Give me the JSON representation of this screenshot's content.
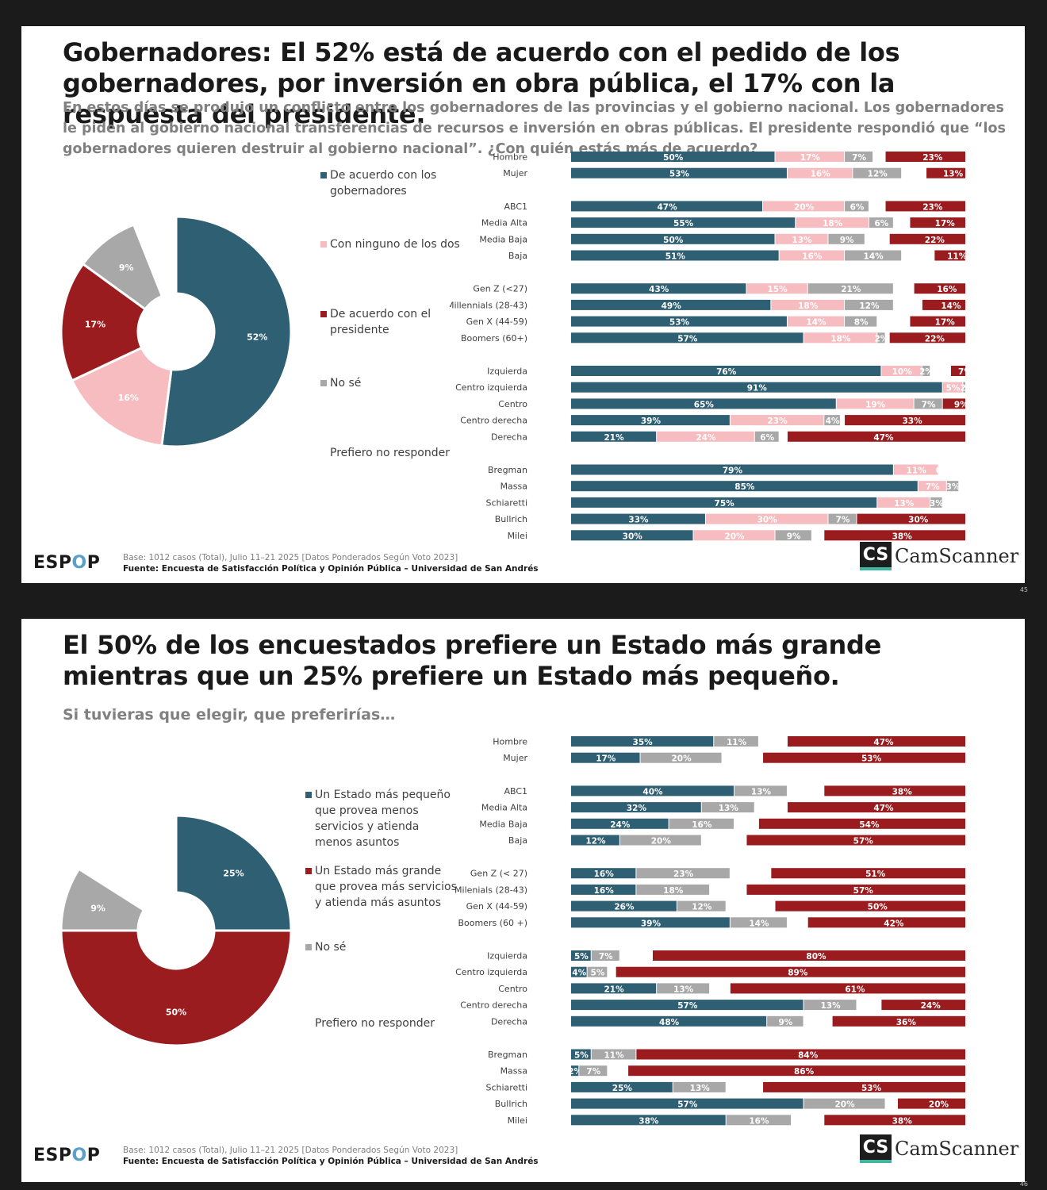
{
  "colors": {
    "acuerdo_gob": "#2e5f73",
    "ninguno": "#f6bcc0",
    "acuerdo_pres": "#9a1c1f",
    "no_se": "#a8a8a8",
    "pequeno": "#2e5f73",
    "grande": "#9a1c1f"
  },
  "slides": [
    {
      "title": "Gobernadores: El 52% está de acuerdo con el pedido de los gobernadores, por inversión en obra pública, el 17% con la respuesta del presidente.",
      "subtitle": "En estos días se produjo un conflicto entre los gobernadores de las provincias y el gobierno nacional. Los gobernadores le piden al gobierno nacional transferencias de recursos e inversión en obras públicas. El presidente respondió que “los gobernadores quieren destruir al gobierno nacional”. ¿Con quién estás más de acuerdo?",
      "legend": [
        "De acuerdo con los gobernadores",
        "Con ninguno de los dos",
        "De acuerdo con el presidente",
        "No sé",
        "Prefiero no responder"
      ],
      "footer_base": "Base: 1012 casos (Total), Julio 11–21 2025 [Datos Ponderados Según Voto 2023]",
      "footer_source": "Fuente: Encuesta de Satisfacción Política y Opinión Pública – Universidad de San Andrés",
      "logo_a": "ESP",
      "logo_o": "O",
      "logo_b": "P",
      "page": "45"
    },
    {
      "title": "El 50% de los encuestados prefiere un Estado más grande mientras que un 25% prefiere un Estado más pequeño.",
      "subtitle": "Si tuvieras que elegir, que preferirías…",
      "legend": [
        "Un Estado más pequeño que provea menos servicios y atienda menos asuntos",
        "Un Estado más grande que provea más servicios y atienda más asuntos",
        "No sé",
        "Prefiero no responder"
      ],
      "footer_base": "Base: 1012 casos (Total), Julio 11–21 2025 [Datos Ponderados Según Voto 2023]",
      "footer_source": "Fuente: Encuesta de Satisfacción Política y Opinión Pública – Universidad de San Andrés",
      "logo_a": "ESP",
      "logo_o": "O",
      "logo_b": "P",
      "page": "46"
    }
  ],
  "watermark": {
    "cs": "CS",
    "text": "CamScanner"
  },
  "chart_data": [
    {
      "type": "pie",
      "slices": [
        {
          "label": "De acuerdo con los gobernadores",
          "value": 52,
          "display": "52%",
          "color": "#2e5f73"
        },
        {
          "label": "Con ninguno de los dos",
          "value": 16,
          "display": "16%",
          "color": "#f6bcc0"
        },
        {
          "label": "De acuerdo con el presidente",
          "value": 17,
          "display": "17%",
          "color": "#9a1c1f"
        },
        {
          "label": "No sé",
          "value": 9,
          "display": "9%",
          "color": "#a8a8a8"
        },
        {
          "label": "Prefiero no responder",
          "value": 6,
          "display": "",
          "color": "#ffffff"
        }
      ]
    },
    {
      "type": "bar",
      "orientation": "horizontal-stacked",
      "series": [
        "De acuerdo con los gobernadores",
        "Con ninguno de los dos",
        "No sé",
        "Prefiero no responder",
        "De acuerdo con el presidente"
      ],
      "groups": [
        [
          {
            "label": "Hombre",
            "values": [
              50,
              17,
              7,
              3,
              23
            ],
            "labels": [
              "50%",
              "17%",
              "7%",
              "",
              "23%"
            ]
          },
          {
            "label": "Mujer",
            "values": [
              53,
              16,
              12,
              6,
              13
            ],
            "labels": [
              "53%",
              "16%",
              "12%",
              "",
              "13%"
            ]
          }
        ],
        [
          {
            "label": "ABC1",
            "values": [
              47,
              20,
              6,
              4,
              23
            ],
            "labels": [
              "47%",
              "20%",
              "6%",
              "",
              "23%"
            ]
          },
          {
            "label": "Media Alta",
            "values": [
              55,
              18,
              6,
              4,
              17
            ],
            "labels": [
              "55%",
              "18%",
              "6%",
              "",
              "17%"
            ]
          },
          {
            "label": "Media Baja",
            "values": [
              50,
              13,
              9,
              6,
              22
            ],
            "labels": [
              "50%",
              "13%",
              "9%",
              "",
              "22%"
            ]
          },
          {
            "label": "Baja",
            "values": [
              51,
              16,
              14,
              8,
              11
            ],
            "labels": [
              "51%",
              "16%",
              "14%",
              "",
              "11%"
            ]
          }
        ],
        [
          {
            "label": "Gen Z (<27)",
            "values": [
              43,
              15,
              21,
              5,
              16
            ],
            "labels": [
              "43%",
              "15%",
              "21%",
              "",
              "16%"
            ]
          },
          {
            "label": "Millennials (28-43)",
            "values": [
              49,
              18,
              12,
              7,
              14
            ],
            "labels": [
              "49%",
              "18%",
              "12%",
              "",
              "14%"
            ]
          },
          {
            "label": "Gen X (44-59)",
            "values": [
              53,
              14,
              8,
              8,
              17
            ],
            "labels": [
              "53%",
              "14%",
              "8%",
              "",
              "17%"
            ]
          },
          {
            "label": "Boomers (60+)",
            "values": [
              57,
              18,
              2,
              1,
              22
            ],
            "labels": [
              "57%",
              "18%",
              "2%",
              "",
              "22%"
            ]
          }
        ],
        [
          {
            "label": "Izquierda",
            "values": [
              76,
              10,
              2,
              5,
              7
            ],
            "labels": [
              "76%",
              "10%",
              "2%",
              "",
              "7%"
            ]
          },
          {
            "label": "Centro izquierda",
            "values": [
              91,
              5,
              2,
              0,
              2
            ],
            "labels": [
              "91%",
              "5%",
              "2%",
              "",
              "2%"
            ]
          },
          {
            "label": "Centro",
            "values": [
              65,
              19,
              7,
              0,
              9
            ],
            "labels": [
              "65%",
              "19%",
              "7%",
              "",
              "9%"
            ]
          },
          {
            "label": "Centro derecha",
            "values": [
              39,
              23,
              4,
              1,
              33
            ],
            "labels": [
              "39%",
              "23%",
              "4%",
              "",
              "33%"
            ]
          },
          {
            "label": "Derecha",
            "values": [
              21,
              24,
              6,
              2,
              47
            ],
            "labels": [
              "21%",
              "24%",
              "6%",
              "",
              "47%"
            ]
          }
        ],
        [
          {
            "label": "Bregman",
            "values": [
              79,
              11,
              0,
              10,
              0
            ],
            "labels": [
              "79%",
              "11%",
              "0",
              "",
              ""
            ]
          },
          {
            "label": "Massa",
            "values": [
              85,
              7,
              3,
              3,
              2
            ],
            "labels": [
              "85%",
              "7%",
              "3%",
              "",
              "2"
            ]
          },
          {
            "label": "Schiaretti",
            "values": [
              75,
              13,
              3,
              6,
              3
            ],
            "labels": [
              "75%",
              "13%",
              "3%",
              "",
              "3%"
            ]
          },
          {
            "label": "Bullrich",
            "values": [
              33,
              30,
              7,
              0,
              30
            ],
            "labels": [
              "33%",
              "30%",
              "7%",
              "",
              "30%"
            ]
          },
          {
            "label": "Milei",
            "values": [
              30,
              20,
              9,
              3,
              38
            ],
            "labels": [
              "30%",
              "20%",
              "9%",
              "",
              "38%"
            ]
          }
        ]
      ]
    },
    {
      "type": "pie",
      "slices": [
        {
          "label": "Un Estado más pequeño que provea menos servicios y atienda menos asuntos",
          "value": 25,
          "display": "25%",
          "color": "#2e5f73"
        },
        {
          "label": "Un Estado más grande que provea más servicios y atienda más asuntos",
          "value": 50,
          "display": "50%",
          "color": "#9a1c1f"
        },
        {
          "label": "No sé",
          "value": 9,
          "display": "9%",
          "color": "#a8a8a8"
        },
        {
          "label": "Prefiero no responder",
          "value": 16,
          "display": "",
          "color": "#ffffff"
        }
      ]
    },
    {
      "type": "bar",
      "orientation": "horizontal-stacked",
      "series": [
        "Un Estado más pequeño",
        "No sé",
        "Prefiero no responder",
        "Un Estado más grande"
      ],
      "groups": [
        [
          {
            "label": "Hombre",
            "values": [
              35,
              11,
              7,
              47
            ],
            "labels": [
              "35%",
              "11%",
              "",
              "47%"
            ]
          },
          {
            "label": "Mujer",
            "values": [
              17,
              20,
              10,
              53
            ],
            "labels": [
              "17%",
              "20%",
              "",
              "53%"
            ]
          }
        ],
        [
          {
            "label": "ABC1",
            "values": [
              40,
              13,
              9,
              38
            ],
            "labels": [
              "40%",
              "13%",
              "",
              "38%"
            ]
          },
          {
            "label": "Media Alta",
            "values": [
              32,
              13,
              8,
              47
            ],
            "labels": [
              "32%",
              "13%",
              "",
              "47%"
            ]
          },
          {
            "label": "Media Baja",
            "values": [
              24,
              16,
              6,
              54
            ],
            "labels": [
              "24%",
              "16%",
              "",
              "54%"
            ]
          },
          {
            "label": "Baja",
            "values": [
              12,
              20,
              11,
              57
            ],
            "labels": [
              "12%",
              "20%",
              "",
              "57%"
            ]
          }
        ],
        [
          {
            "label": "Gen Z (< 27)",
            "values": [
              16,
              23,
              10,
              51
            ],
            "labels": [
              "16%",
              "23%",
              "",
              "51%"
            ]
          },
          {
            "label": "Milenials (28-43)",
            "values": [
              16,
              18,
              9,
              57
            ],
            "labels": [
              "16%",
              "18%",
              "",
              "57%"
            ]
          },
          {
            "label": "Gen X (44-59)",
            "values": [
              26,
              12,
              12,
              50
            ],
            "labels": [
              "26%",
              "12%",
              "",
              "50%"
            ]
          },
          {
            "label": "Boomers (60 +)",
            "values": [
              39,
              14,
              5,
              42
            ],
            "labels": [
              "39%",
              "14%",
              "",
              "42%"
            ]
          }
        ],
        [
          {
            "label": "Izquierda",
            "values": [
              5,
              7,
              8,
              80
            ],
            "labels": [
              "5%",
              "7%",
              "",
              "80%"
            ]
          },
          {
            "label": "Centro izquierda",
            "values": [
              4,
              5,
              2,
              89
            ],
            "labels": [
              "4%",
              "5%",
              "",
              "89%"
            ]
          },
          {
            "label": "Centro",
            "values": [
              21,
              13,
              5,
              61
            ],
            "labels": [
              "21%",
              "13%",
              "",
              "61%"
            ]
          },
          {
            "label": "Centro derecha",
            "values": [
              57,
              13,
              6,
              24
            ],
            "labels": [
              "57%",
              "13%",
              "",
              "24%"
            ]
          },
          {
            "label": "Derecha",
            "values": [
              48,
              9,
              7,
              36
            ],
            "labels": [
              "48%",
              "9%",
              "",
              "36%"
            ]
          }
        ],
        [
          {
            "label": "Bregman",
            "values": [
              5,
              11,
              0,
              84
            ],
            "labels": [
              "5%",
              "11%",
              "",
              "84%"
            ]
          },
          {
            "label": "Massa",
            "values": [
              2,
              7,
              5,
              86
            ],
            "labels": [
              "2%",
              "7%",
              "",
              "86%"
            ]
          },
          {
            "label": "Schiaretti",
            "values": [
              25,
              13,
              9,
              53
            ],
            "labels": [
              "25%",
              "13%",
              "",
              "53%"
            ]
          },
          {
            "label": "Bullrich",
            "values": [
              57,
              20,
              3,
              20
            ],
            "labels": [
              "57%",
              "20%",
              "",
              "20%"
            ]
          },
          {
            "label": "Milei",
            "values": [
              38,
              16,
              8,
              38
            ],
            "labels": [
              "38%",
              "16%",
              "",
              "38%"
            ]
          }
        ]
      ]
    }
  ]
}
